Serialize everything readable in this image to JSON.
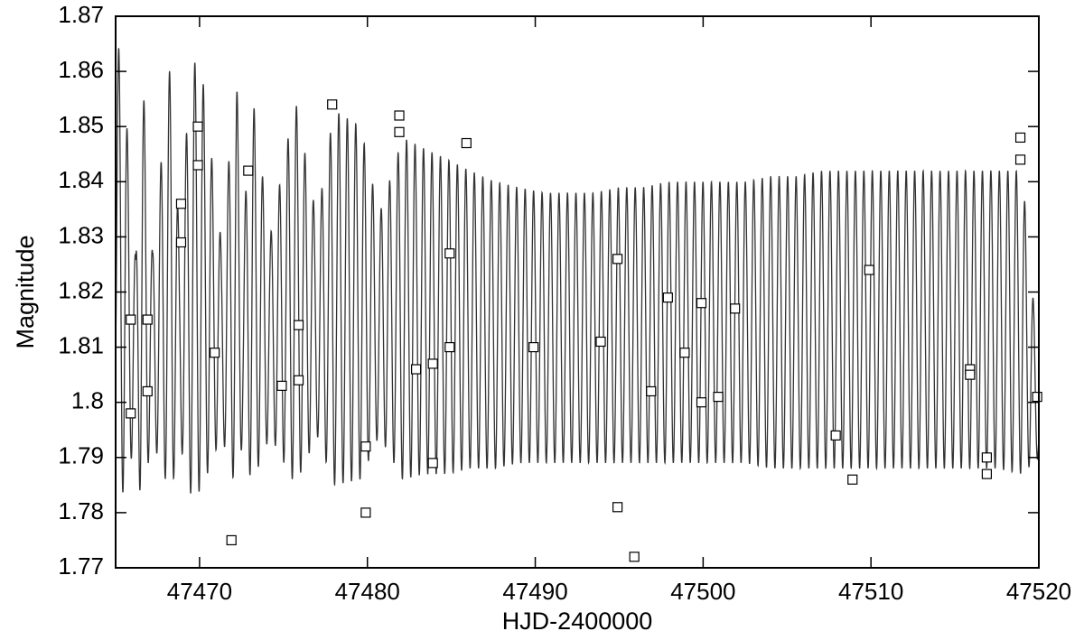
{
  "chart_data": {
    "type": "scatter",
    "title": "",
    "xlabel": "HJD-2400000",
    "ylabel": "Magnitude",
    "xlim": [
      47465,
      47520
    ],
    "ylim": [
      1.77,
      1.87
    ],
    "grid": false,
    "legend": "none",
    "x_ticks": [
      {
        "value": 47470,
        "label": "47470"
      },
      {
        "value": 47480,
        "label": "47480"
      },
      {
        "value": 47490,
        "label": "47490"
      },
      {
        "value": 47500,
        "label": "47500"
      },
      {
        "value": 47510,
        "label": "47510"
      },
      {
        "value": 47520,
        "label": "47520"
      }
    ],
    "y_ticks": [
      {
        "value": 1.77,
        "label": "1.77"
      },
      {
        "value": 1.78,
        "label": "1.78"
      },
      {
        "value": 1.79,
        "label": "1.79"
      },
      {
        "value": 1.8,
        "label": "1.8"
      },
      {
        "value": 1.81,
        "label": "1.81"
      },
      {
        "value": 1.82,
        "label": "1.82"
      },
      {
        "value": 1.83,
        "label": "1.83"
      },
      {
        "value": 1.84,
        "label": "1.84"
      },
      {
        "value": 1.85,
        "label": "1.85"
      },
      {
        "value": 1.86,
        "label": "1.86"
      },
      {
        "value": 1.87,
        "label": "1.87"
      }
    ],
    "series": [
      {
        "kind": "points",
        "marker": "open-square",
        "color": "#000000",
        "x": [
          47465.9,
          47465.9,
          47466.9,
          47466.9,
          47468.9,
          47468.9,
          47469.9,
          47469.9,
          47470.9,
          47471.9,
          47472.9,
          47474.9,
          47475.9,
          47475.9,
          47477.9,
          47479.9,
          47479.9,
          47481.9,
          47481.9,
          47482.9,
          47483.9,
          47483.9,
          47484.9,
          47484.9,
          47485.9,
          47489.9,
          47493.9,
          47494.9,
          47494.9,
          47495.9,
          47496.9,
          47497.9,
          47498.9,
          47499.9,
          47499.9,
          47500.9,
          47501.9,
          47507.9,
          47508.9,
          47509.9,
          47515.9,
          47515.9,
          47516.9,
          47516.9,
          47518.9,
          47518.9,
          47519.9
        ],
        "y": [
          1.815,
          1.798,
          1.815,
          1.802,
          1.836,
          1.829,
          1.85,
          1.843,
          1.809,
          1.775,
          1.842,
          1.803,
          1.814,
          1.804,
          1.854,
          1.792,
          1.78,
          1.852,
          1.849,
          1.806,
          1.807,
          1.789,
          1.827,
          1.81,
          1.847,
          1.81,
          1.811,
          1.826,
          1.781,
          1.772,
          1.802,
          1.819,
          1.809,
          1.818,
          1.8,
          1.801,
          1.817,
          1.794,
          1.786,
          1.824,
          1.806,
          1.805,
          1.79,
          1.787,
          1.848,
          1.844,
          1.801
        ]
      },
      {
        "kind": "model-curve",
        "color": "#333333",
        "x": [
          47465.0,
          47465.3,
          47466.2,
          47466.5,
          47467.2,
          47468.3,
          47468.8,
          47469.5,
          47470.1,
          47471.3,
          47472.2,
          47472.6,
          47473.1,
          47474.2,
          47475.7,
          47477.0,
          47478.0,
          47479.6,
          47480.7,
          47482.1,
          47483.4,
          47484.8,
          47486.1,
          47487.6,
          47489.0,
          47490.5,
          47492.0,
          47493.5,
          47495.0,
          47496.4,
          47498.0,
          47499.5,
          47501.0,
          47502.5,
          47504.0,
          47505.6,
          47507.0,
          47508.5,
          47510.0,
          47511.5,
          47513.0,
          47514.6,
          47516.0,
          47517.5,
          47519.0,
          47520.0
        ],
        "y_upper": [
          1.86,
          1.867,
          1.826,
          1.865,
          1.827,
          1.863,
          1.829,
          1.862,
          1.861,
          1.829,
          1.859,
          1.83,
          1.857,
          1.83,
          1.855,
          1.833,
          1.853,
          1.85,
          1.834,
          1.848,
          1.846,
          1.844,
          1.842,
          1.84,
          1.839,
          1.838,
          1.838,
          1.838,
          1.839,
          1.839,
          1.84,
          1.84,
          1.84,
          1.84,
          1.841,
          1.841,
          1.842,
          1.842,
          1.842,
          1.842,
          1.842,
          1.842,
          1.842,
          1.842,
          1.842,
          1.807
        ],
        "y_lower": [
          1.795,
          1.782,
          1.793,
          1.782,
          1.793,
          1.783,
          1.793,
          1.783,
          1.784,
          1.794,
          1.784,
          1.794,
          1.785,
          1.794,
          1.785,
          1.794,
          1.785,
          1.786,
          1.794,
          1.786,
          1.787,
          1.787,
          1.788,
          1.788,
          1.789,
          1.789,
          1.789,
          1.789,
          1.789,
          1.789,
          1.789,
          1.789,
          1.789,
          1.789,
          1.788,
          1.788,
          1.788,
          1.788,
          1.788,
          1.788,
          1.788,
          1.788,
          1.788,
          1.788,
          1.787,
          1.79
        ]
      }
    ]
  }
}
